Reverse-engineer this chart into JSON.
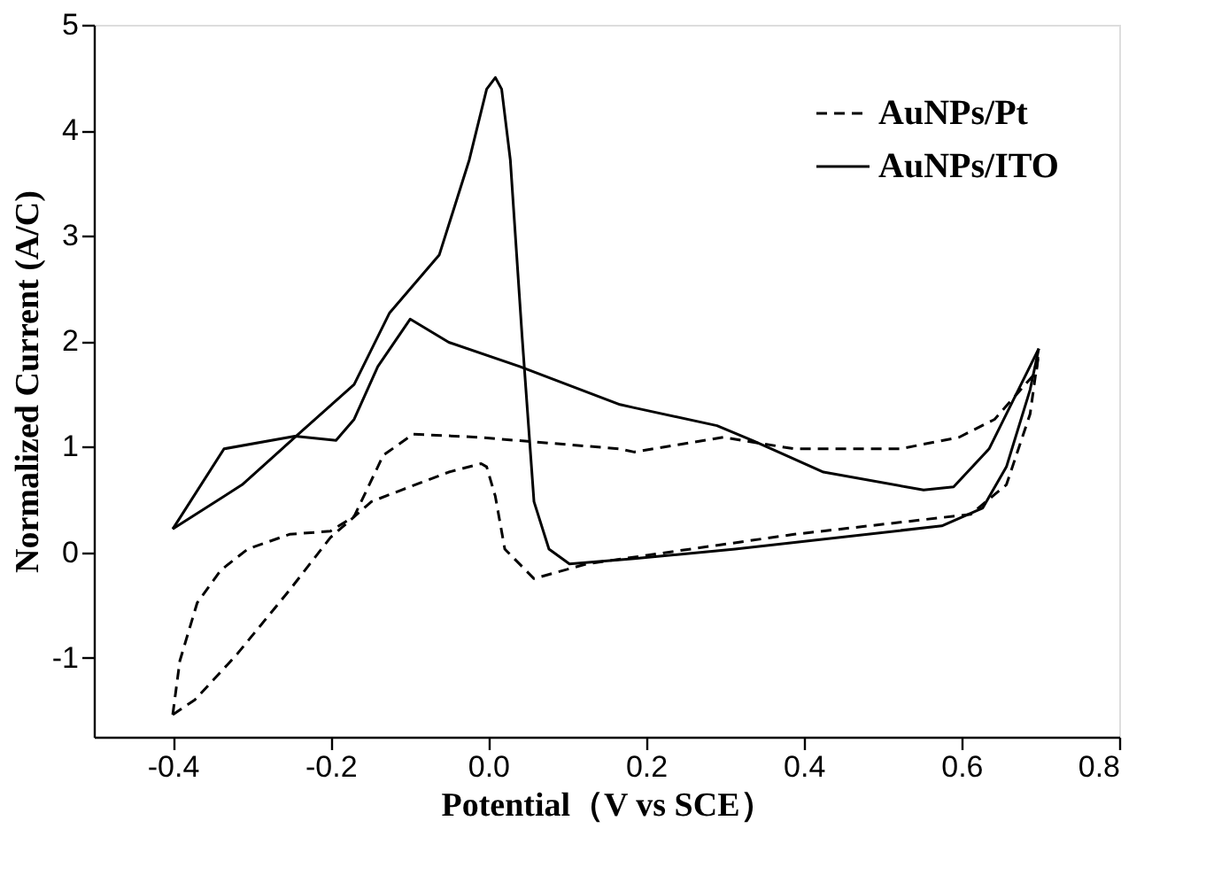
{
  "chart_data": {
    "type": "line",
    "xlabel": "Potential（V vs SCE）",
    "ylabel": "Normalized Current (A/C)",
    "xlim": [
      -0.5,
      0.8
    ],
    "ylim": [
      -1.75,
      5
    ],
    "xticks": [
      -0.4,
      -0.2,
      {
        "value": 0,
        "label": "0.0"
      },
      0.2,
      0.4,
      0.6,
      0.8
    ],
    "yticks": [
      -1,
      0,
      1,
      2,
      3,
      4,
      5
    ],
    "grid": false,
    "legend": "top right",
    "marker": "none",
    "series": [
      {
        "name": "AuNPs/Pt",
        "color": "#000000",
        "line_style": "dashed",
        "x": [
          -0.4,
          -0.391,
          -0.369,
          -0.339,
          -0.305,
          -0.252,
          -0.2,
          -0.17,
          -0.133,
          -0.095,
          -0.013,
          0.167,
          0.185,
          0.298,
          0.388,
          0.522,
          0.597,
          0.642,
          0.695,
          0.698
        ],
        "values": [
          -1.54,
          -1.03,
          -0.48,
          -0.17,
          0.03,
          0.17,
          0.2,
          0.34,
          0.92,
          1.12,
          1.09,
          0.98,
          0.95,
          1.09,
          0.98,
          0.98,
          1.09,
          1.26,
          1.71,
          1.9
        ]
      },
      {
        "color": "#000000",
        "line_style": "dashed",
        "x": [
          -0.4,
          -0.372,
          -0.32,
          -0.252,
          -0.2,
          -0.148,
          -0.11,
          -0.05,
          -0.009,
          -0.002,
          0.009,
          0.021,
          0.058,
          0.125,
          0.388,
          0.612,
          0.657,
          0.687,
          0.698
        ],
        "values": [
          -1.54,
          -1.4,
          -0.98,
          -0.36,
          0.14,
          0.48,
          0.59,
          0.76,
          0.84,
          0.81,
          0.53,
          0.03,
          -0.25,
          -0.11,
          0.17,
          0.36,
          0.64,
          1.31,
          1.9
        ]
      },
      {
        "name": "AuNPs/ITO",
        "color": "#000000",
        "line_style": "solid",
        "x": [
          -0.4,
          -0.335,
          -0.245,
          -0.193,
          -0.17,
          -0.14,
          -0.099,
          -0.05,
          0.04,
          0.167,
          0.185,
          0.29,
          0.335,
          0.425,
          0.552,
          0.59,
          0.635,
          0.698
        ],
        "values": [
          0.22,
          0.98,
          1.1,
          1.06,
          1.26,
          1.76,
          2.21,
          1.99,
          1.76,
          1.4,
          1.37,
          1.2,
          1.06,
          0.76,
          0.59,
          0.62,
          0.98,
          1.93
        ]
      },
      {
        "color": "#000000",
        "line_style": "solid",
        "x": [
          -0.4,
          -0.312,
          -0.245,
          -0.17,
          -0.125,
          -0.062,
          -0.024,
          -0.002,
          0.009,
          0.017,
          0.028,
          0.043,
          0.058,
          0.077,
          0.103,
          0.185,
          0.313,
          0.575,
          0.627,
          0.657,
          0.687,
          0.698
        ],
        "values": [
          0.22,
          0.64,
          1.09,
          1.59,
          2.27,
          2.82,
          3.72,
          4.39,
          4.5,
          4.39,
          3.72,
          2.04,
          0.48,
          0.03,
          -0.11,
          -0.06,
          0.03,
          0.25,
          0.42,
          0.81,
          1.54,
          1.93
        ]
      }
    ]
  }
}
